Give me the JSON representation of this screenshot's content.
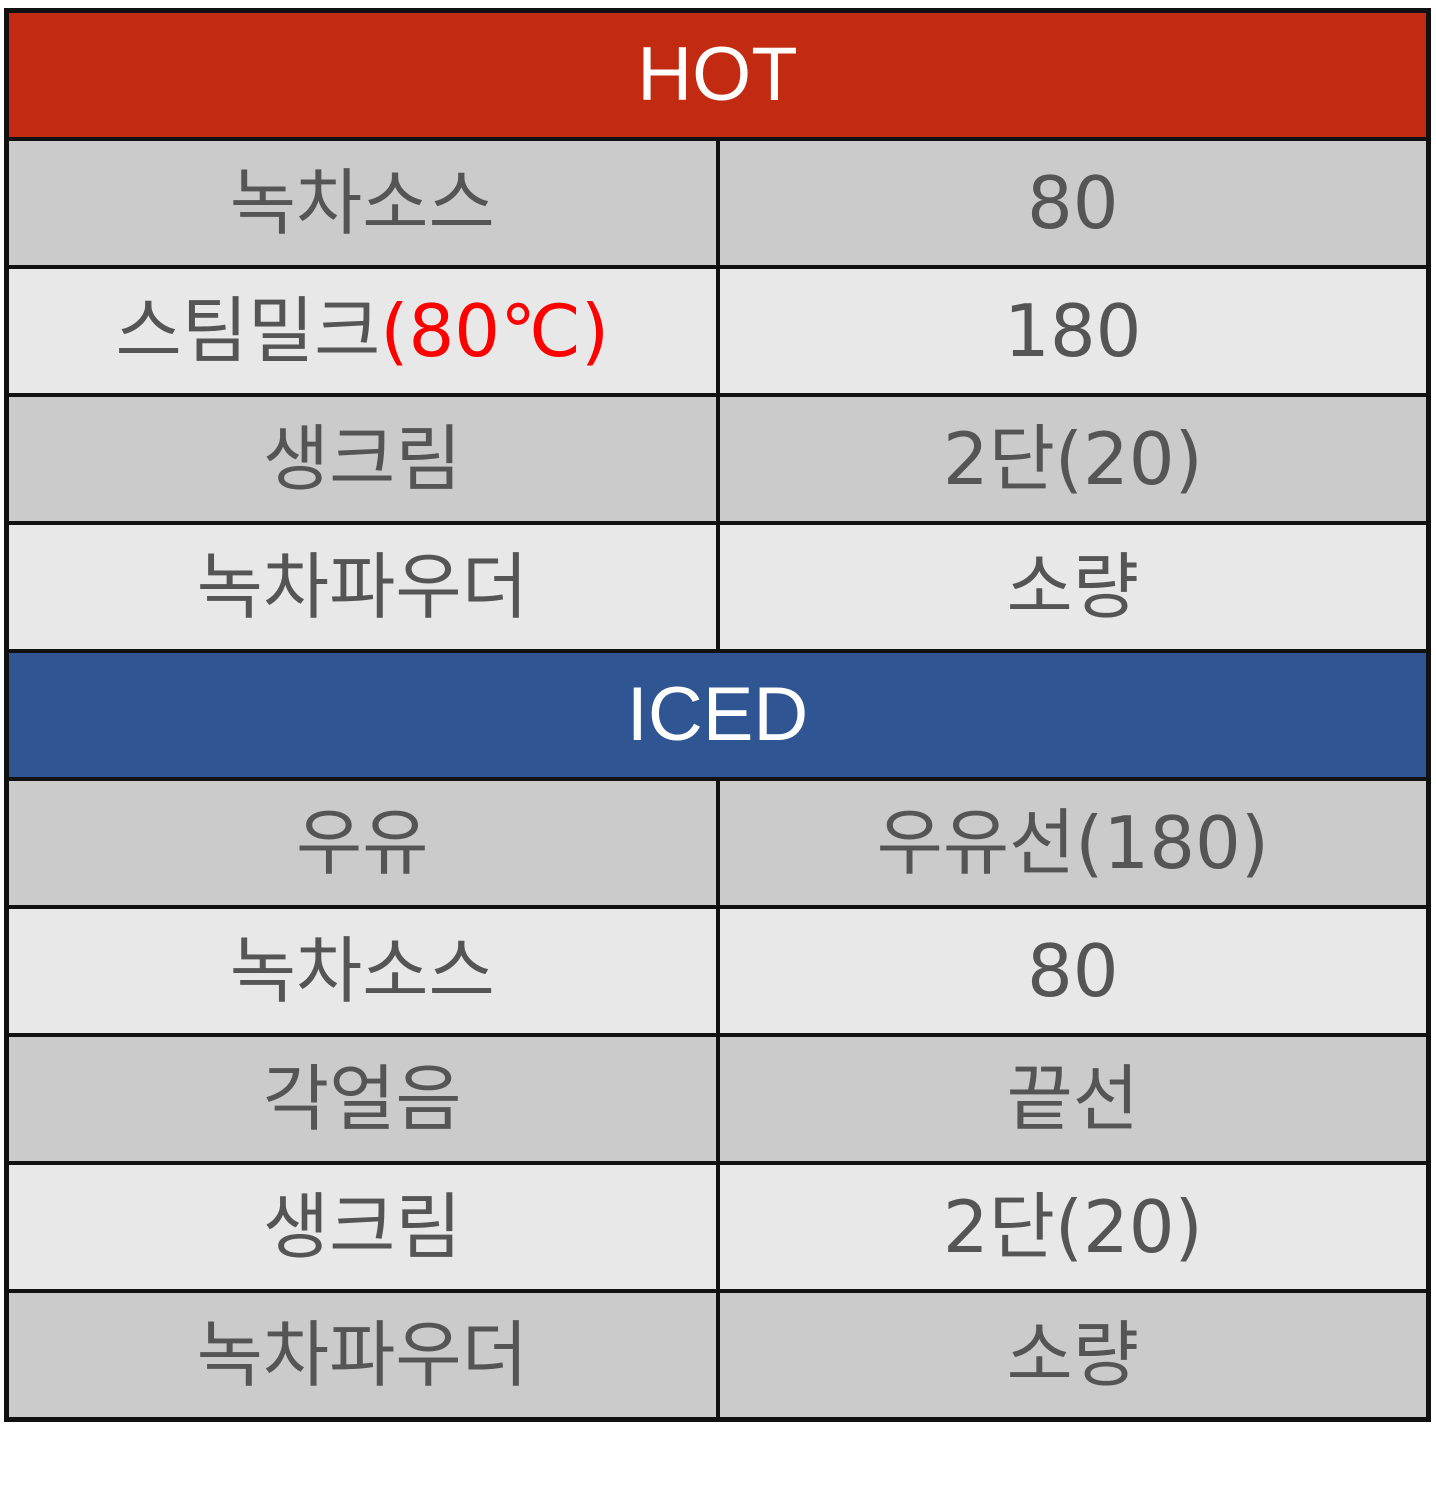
{
  "colors": {
    "hot_header": "#c32a12",
    "iced_header": "#2f5593",
    "row_dark": "#cbcbcb",
    "row_light": "#e8e8e8",
    "note_red": "#ff0000",
    "text": "#555555"
  },
  "hot": {
    "title": "HOT",
    "rows": [
      {
        "ingredient": "녹차소스",
        "note": "",
        "amount": "80"
      },
      {
        "ingredient": "스팀밀크",
        "note": "(80℃)",
        "amount": "180"
      },
      {
        "ingredient": "생크림",
        "note": "",
        "amount": "2단(20)"
      },
      {
        "ingredient": "녹차파우더",
        "note": "",
        "amount": "소량"
      }
    ]
  },
  "iced": {
    "title": "ICED",
    "rows": [
      {
        "ingredient": "우유",
        "amount": "우유선(180)"
      },
      {
        "ingredient": "녹차소스",
        "amount": "80"
      },
      {
        "ingredient": "각얼음",
        "amount": "끝선"
      },
      {
        "ingredient": "생크림",
        "amount": "2단(20)"
      },
      {
        "ingredient": "녹차파우더",
        "amount": "소량"
      }
    ]
  }
}
